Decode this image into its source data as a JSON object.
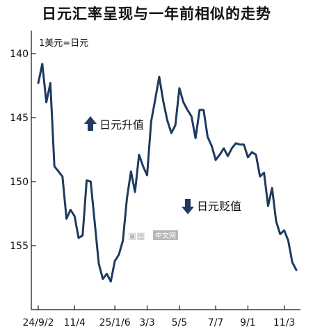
{
  "chart_data": {
    "type": "line",
    "title": "日元汇率呈现与一年前相似的走势",
    "unit_note": "1美元=日元",
    "y_axis": {
      "inverted": true,
      "ylim": [
        160,
        138.2
      ],
      "ticks": [
        140,
        145,
        150,
        155
      ]
    },
    "x_ticks": [
      {
        "label": "24/9/2",
        "index": 0
      },
      {
        "label": "11/4",
        "index": 9
      },
      {
        "label": "25/1/6",
        "index": 19
      },
      {
        "label": "3/3",
        "index": 27
      },
      {
        "label": "5/5",
        "index": 35
      },
      {
        "label": "7/7",
        "index": 44
      },
      {
        "label": "9/1",
        "index": 52
      },
      {
        "label": "11/3",
        "index": 61
      }
    ],
    "annotations": [
      {
        "text": "日元升值",
        "arrow": "up"
      },
      {
        "text": "日元贬值",
        "arrow": "down"
      }
    ],
    "series": [
      {
        "color": "#1f3a5f",
        "values": [
          142.3,
          140.8,
          143.8,
          142.3,
          148.8,
          149.2,
          149.6,
          152.9,
          152.2,
          152.7,
          154.4,
          154.2,
          149.9,
          150.0,
          153.2,
          156.4,
          157.6,
          157.2,
          157.8,
          156.2,
          155.7,
          154.6,
          151.3,
          149.2,
          150.8,
          147.9,
          148.8,
          149.5,
          145.3,
          143.6,
          141.8,
          143.7,
          145.2,
          146.2,
          145.6,
          142.7,
          143.8,
          144.4,
          144.9,
          146.6,
          144.4,
          144.4,
          146.5,
          147.2,
          148.3,
          147.9,
          147.4,
          148.0,
          147.4,
          147.0,
          147.1,
          147.1,
          148.1,
          147.7,
          147.9,
          149.6,
          149.3,
          151.9,
          150.5,
          153.1,
          154.1,
          153.8,
          154.6,
          156.3,
          156.9
        ]
      }
    ],
    "grid": false
  },
  "watermark": {
    "text": "中文网"
  }
}
